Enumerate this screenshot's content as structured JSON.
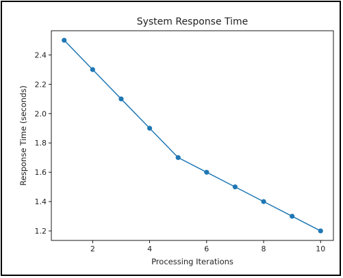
{
  "chart_data": {
    "type": "line",
    "title": "System Response Time",
    "xlabel": "Processing Iterations",
    "ylabel": "Response Time (seconds)",
    "x": [
      1,
      2,
      3,
      4,
      5,
      6,
      7,
      8,
      9,
      10
    ],
    "series": [
      {
        "values": [
          2.5,
          2.3,
          2.1,
          1.9,
          1.7,
          1.6,
          1.5,
          1.4,
          1.3,
          1.2
        ],
        "color": "#1f77b4",
        "marker": "circle"
      }
    ],
    "xlim": [
      0.55,
      10.45
    ],
    "ylim": [
      1.135,
      2.565
    ],
    "xticks": [
      2,
      4,
      6,
      8,
      10
    ],
    "yticks": [
      1.2,
      1.4,
      1.6,
      1.8,
      2.0,
      2.2,
      2.4
    ],
    "xtick_labels": [
      "2",
      "4",
      "6",
      "8",
      "10"
    ],
    "ytick_labels": [
      "1.2",
      "1.4",
      "1.6",
      "1.8",
      "2.0",
      "2.2",
      "2.4"
    ],
    "grid": false,
    "legend": false
  }
}
